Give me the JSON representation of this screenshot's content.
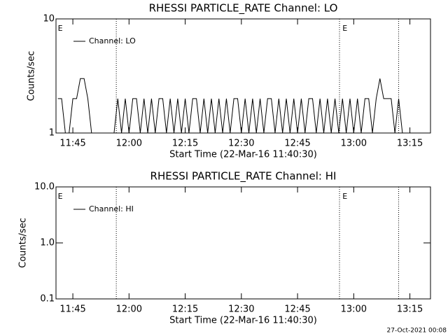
{
  "chart_data": [
    {
      "type": "line",
      "title": "RHESSI PARTICLE_RATE Channel: LO",
      "xlabel": "Start Time (22-Mar-16 11:40:30)",
      "ylabel": "Counts/sec",
      "x": [
        701,
        702,
        703,
        704,
        705,
        706,
        707,
        708,
        709,
        710,
        711,
        712,
        713,
        714,
        715,
        716,
        717,
        718,
        719,
        720,
        721,
        722,
        723,
        724,
        725,
        726,
        727,
        728,
        729,
        730,
        731,
        732,
        733,
        734,
        735,
        736,
        737,
        738,
        739,
        740,
        741,
        742,
        743,
        744,
        745,
        746,
        747,
        748,
        749,
        750,
        751,
        752,
        753,
        754,
        755,
        756,
        757,
        758,
        759,
        760,
        761,
        762,
        763,
        764,
        765,
        766,
        767,
        768,
        769,
        770,
        771,
        772,
        773,
        774,
        775,
        776,
        777,
        778,
        779,
        780,
        781,
        782,
        783,
        784,
        785,
        786,
        787,
        788,
        789,
        790,
        791,
        792,
        793,
        794,
        795,
        796
      ],
      "series": [
        {
          "name": "Channel: LO",
          "color": "#000000",
          "values": [
            2,
            2,
            1,
            1,
            2,
            2,
            3,
            3,
            2,
            1,
            1,
            1,
            1,
            1,
            1,
            1,
            2,
            1,
            2,
            1,
            2,
            2,
            1,
            2,
            1,
            2,
            1,
            2,
            2,
            1,
            2,
            1,
            2,
            1,
            2,
            1,
            2,
            2,
            1,
            2,
            1,
            2,
            1,
            2,
            1,
            2,
            1,
            2,
            2,
            1,
            2,
            1,
            2,
            1,
            2,
            1,
            2,
            2,
            1,
            2,
            1,
            2,
            1,
            2,
            1,
            2,
            1,
            2,
            2,
            1,
            2,
            1,
            2,
            1,
            2,
            1,
            2,
            1,
            2,
            1,
            2,
            1,
            2,
            2,
            1,
            2,
            3,
            2,
            2,
            2,
            1,
            2,
            1,
            1,
            1,
            1
          ]
        }
      ],
      "xlim": [
        700.5,
        800.5
      ],
      "xticks": [
        {
          "value": 705,
          "label": "11:45"
        },
        {
          "value": 720,
          "label": "12:00"
        },
        {
          "value": 735,
          "label": "12:15"
        },
        {
          "value": 750,
          "label": "12:30"
        },
        {
          "value": 765,
          "label": "12:45"
        },
        {
          "value": 780,
          "label": "13:00"
        },
        {
          "value": 795,
          "label": "13:15"
        }
      ],
      "ylim": [
        1,
        10
      ],
      "yticks": [
        1,
        10
      ],
      "log_y": true,
      "vlines": [
        716.6,
        776.2,
        792
      ],
      "annotations": [
        {
          "text": "E",
          "x": 701
        },
        {
          "text": "E",
          "x": 777
        }
      ]
    },
    {
      "type": "line",
      "title": "RHESSI PARTICLE_RATE Channel: HI",
      "xlabel": "Start Time (22-Mar-16 11:40:30)",
      "ylabel": "Counts/sec",
      "x": [],
      "series": [
        {
          "name": "Channel: HI",
          "color": "#000000",
          "values": []
        }
      ],
      "xlim": [
        700.5,
        800.5
      ],
      "xticks": [
        {
          "value": 705,
          "label": "11:45"
        },
        {
          "value": 720,
          "label": "12:00"
        },
        {
          "value": 735,
          "label": "12:15"
        },
        {
          "value": 750,
          "label": "12:30"
        },
        {
          "value": 765,
          "label": "12:45"
        },
        {
          "value": 780,
          "label": "13:00"
        },
        {
          "value": 795,
          "label": "13:15"
        }
      ],
      "ylim": [
        0.1,
        10
      ],
      "yticks": [
        0.1,
        {
          "value": 1,
          "label": "1.0"
        },
        {
          "value": 10,
          "label": "10.0"
        }
      ],
      "log_y": true,
      "vlines": [
        716.6,
        776.2,
        792
      ],
      "annotations": [
        {
          "text": "E",
          "x": 701
        },
        {
          "text": "E",
          "x": 777
        }
      ]
    }
  ],
  "footer": "27-Oct-2021 00:08"
}
